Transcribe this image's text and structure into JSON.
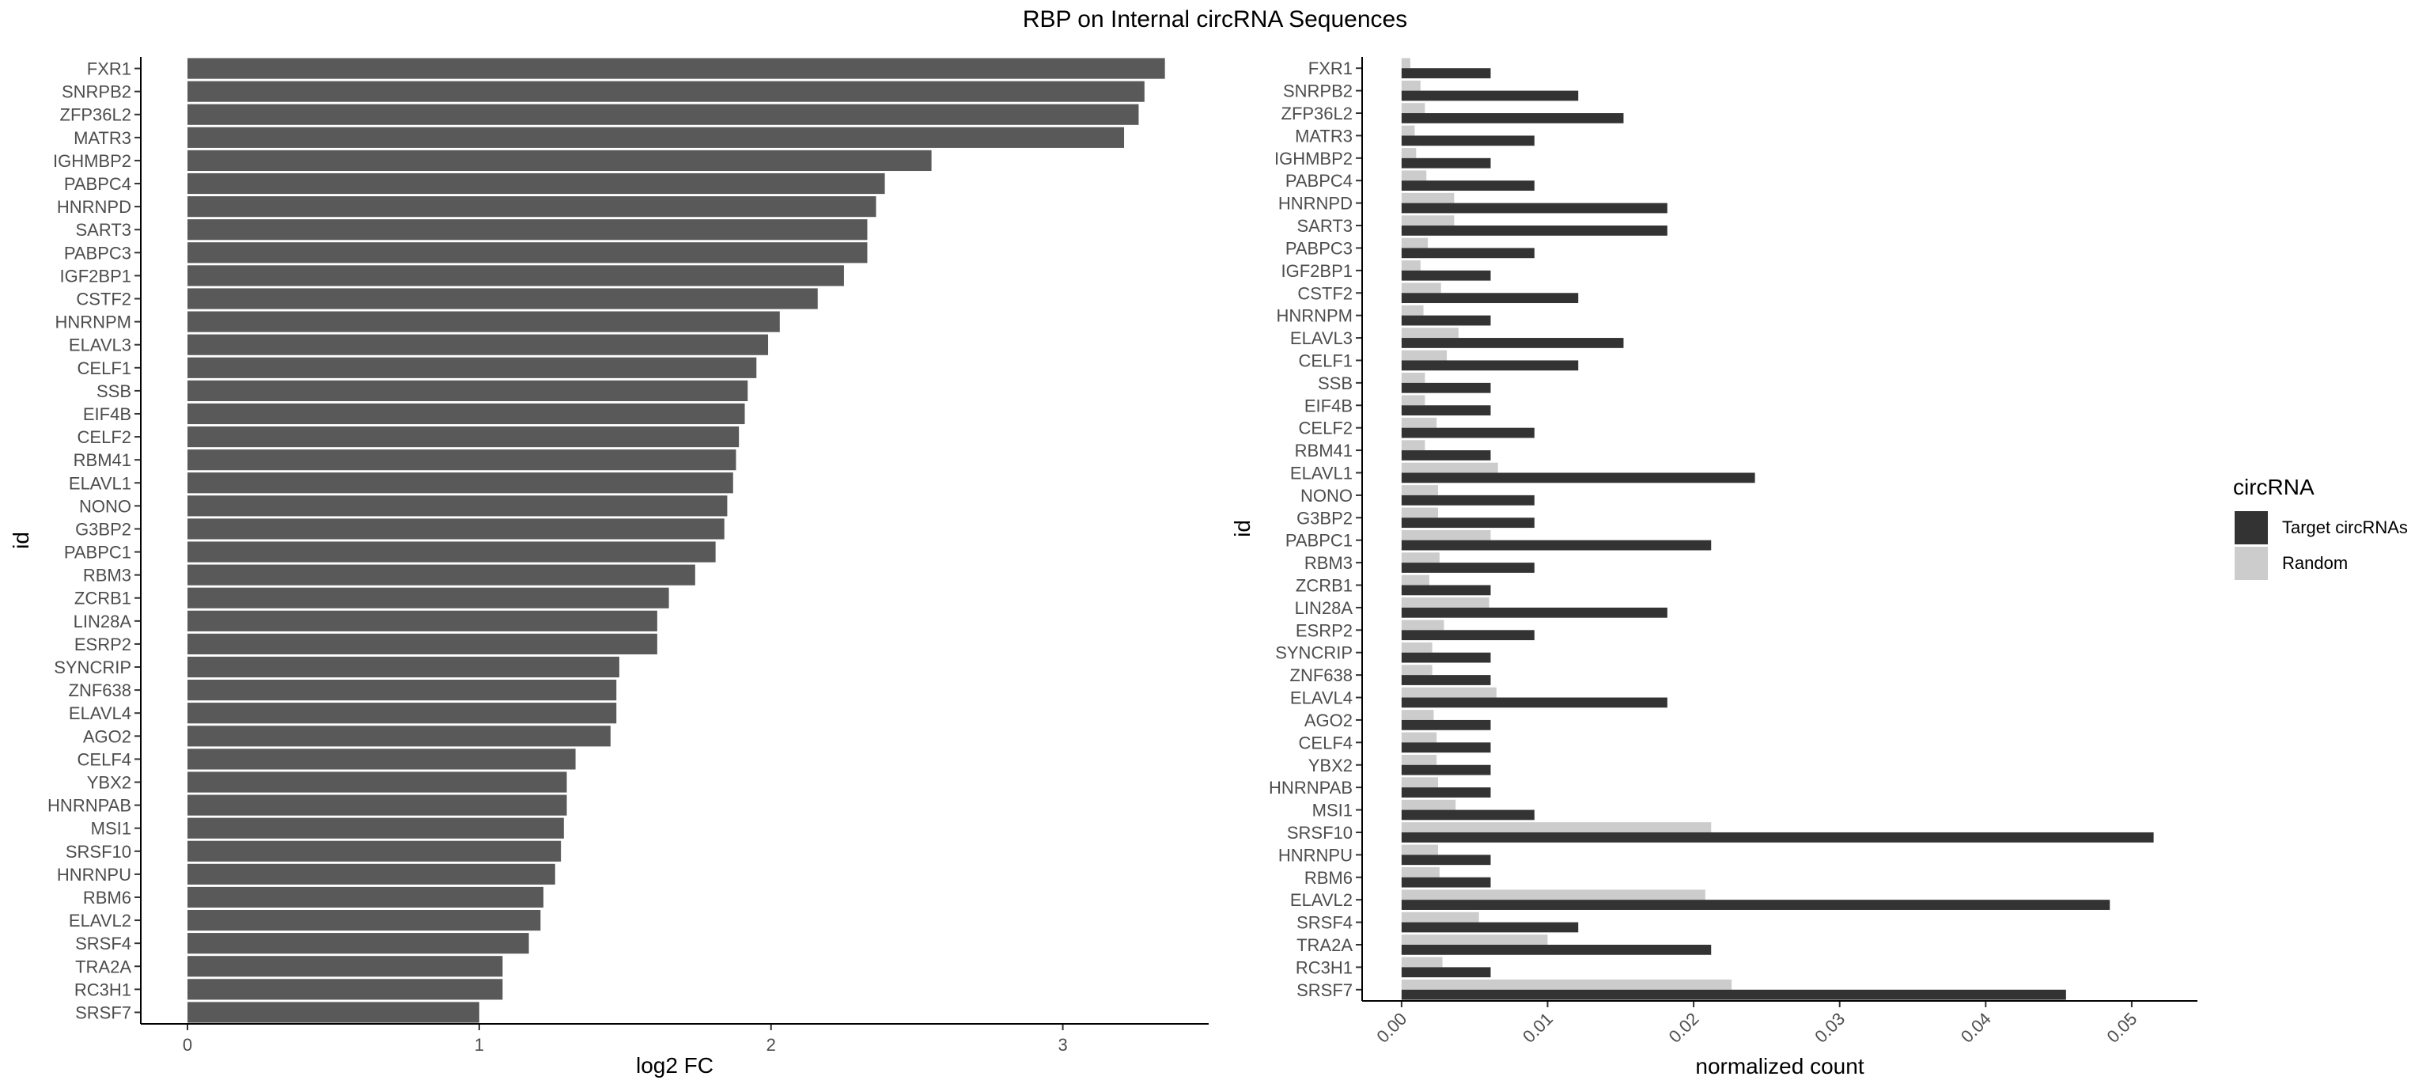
{
  "figure": {
    "title": "RBP on Internal circRNA Sequences"
  },
  "chart_data": [
    {
      "type": "bar",
      "orientation": "horizontal",
      "xlabel": "log2 FC",
      "ylabel": "id",
      "xlim": [
        -0.16,
        3.5
      ],
      "xticks": [
        "0",
        "1",
        "2",
        "3"
      ],
      "bar_color": "#595959",
      "categories": [
        "FXR1",
        "SNRPB2",
        "ZFP36L2",
        "MATR3",
        "IGHMBP2",
        "PABPC4",
        "HNRNPD",
        "SART3",
        "PABPC3",
        "IGF2BP1",
        "CSTF2",
        "HNRNPM",
        "ELAVL3",
        "CELF1",
        "SSB",
        "EIF4B",
        "CELF2",
        "RBM41",
        "ELAVL1",
        "NONO",
        "G3BP2",
        "PABPC1",
        "RBM3",
        "ZCRB1",
        "LIN28A",
        "ESRP2",
        "SYNCRIP",
        "ZNF638",
        "ELAVL4",
        "AGO2",
        "CELF4",
        "YBX2",
        "HNRNPAB",
        "MSI1",
        "SRSF10",
        "HNRNPU",
        "RBM6",
        "ELAVL2",
        "SRSF4",
        "TRA2A",
        "RC3H1",
        "SRSF7"
      ],
      "values": [
        3.35,
        3.28,
        3.26,
        3.21,
        2.55,
        2.39,
        2.36,
        2.33,
        2.33,
        2.25,
        2.16,
        2.03,
        1.99,
        1.95,
        1.92,
        1.91,
        1.89,
        1.88,
        1.87,
        1.85,
        1.84,
        1.81,
        1.74,
        1.65,
        1.61,
        1.61,
        1.48,
        1.47,
        1.47,
        1.45,
        1.33,
        1.3,
        1.3,
        1.29,
        1.28,
        1.26,
        1.22,
        1.21,
        1.17,
        1.08,
        1.08,
        1.0
      ]
    },
    {
      "type": "bar",
      "orientation": "horizontal",
      "grouped": true,
      "xlabel": "normalized count",
      "ylabel": "id",
      "xlim": [
        -0.0027,
        0.0545
      ],
      "xticks": [
        "0.00",
        "0.01",
        "0.02",
        "0.03",
        "0.04",
        "0.05"
      ],
      "categories": [
        "FXR1",
        "SNRPB2",
        "ZFP36L2",
        "MATR3",
        "IGHMBP2",
        "PABPC4",
        "HNRNPD",
        "SART3",
        "PABPC3",
        "IGF2BP1",
        "CSTF2",
        "HNRNPM",
        "ELAVL3",
        "CELF1",
        "SSB",
        "EIF4B",
        "CELF2",
        "RBM41",
        "ELAVL1",
        "NONO",
        "G3BP2",
        "PABPC1",
        "RBM3",
        "ZCRB1",
        "LIN28A",
        "ESRP2",
        "SYNCRIP",
        "ZNF638",
        "ELAVL4",
        "AGO2",
        "CELF4",
        "YBX2",
        "HNRNPAB",
        "MSI1",
        "SRSF10",
        "HNRNPU",
        "RBM6",
        "ELAVL2",
        "SRSF4",
        "TRA2A",
        "RC3H1",
        "SRSF7"
      ],
      "legend": {
        "title": "circRNA",
        "position": "right"
      },
      "series": [
        {
          "name": "Target circRNAs",
          "color": "#333333",
          "values": [
            0.0061,
            0.0121,
            0.0152,
            0.0091,
            0.0061,
            0.0091,
            0.0182,
            0.0182,
            0.0091,
            0.0061,
            0.0121,
            0.0061,
            0.0152,
            0.0121,
            0.0061,
            0.0061,
            0.0091,
            0.0061,
            0.0242,
            0.0091,
            0.0091,
            0.0212,
            0.0091,
            0.0061,
            0.0182,
            0.0091,
            0.0061,
            0.0061,
            0.0182,
            0.0061,
            0.0061,
            0.0061,
            0.0061,
            0.0091,
            0.0515,
            0.0061,
            0.0061,
            0.0485,
            0.0121,
            0.0212,
            0.0061,
            0.0455
          ]
        },
        {
          "name": "Random",
          "color": "#cccccc",
          "values": [
            0.0006,
            0.0013,
            0.0016,
            0.0009,
            0.001,
            0.0017,
            0.0036,
            0.0036,
            0.0018,
            0.0013,
            0.0027,
            0.0015,
            0.0039,
            0.0031,
            0.0016,
            0.0016,
            0.0024,
            0.0016,
            0.0066,
            0.0025,
            0.0025,
            0.0061,
            0.0026,
            0.0019,
            0.006,
            0.0029,
            0.0021,
            0.0021,
            0.0065,
            0.0022,
            0.0024,
            0.0024,
            0.0025,
            0.0037,
            0.0212,
            0.0025,
            0.0026,
            0.0208,
            0.0053,
            0.01,
            0.0028,
            0.0226
          ]
        }
      ]
    }
  ]
}
